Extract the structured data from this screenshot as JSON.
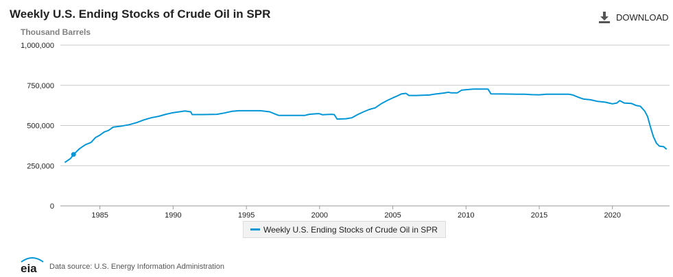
{
  "header": {
    "title": "Weekly U.S. Ending Stocks of Crude Oil in SPR",
    "subtitle": "Thousand Barrels",
    "download_label": "DOWNLOAD"
  },
  "footer": {
    "logo_text": "eia",
    "source": "Data source: U.S. Energy Information Administration"
  },
  "colors": {
    "series": "#0096d6",
    "grid": "#c8c8c8",
    "axis_text": "#222222"
  },
  "icons": {
    "download": "download-icon",
    "logo": "eia-logo-icon"
  },
  "chart_data": {
    "type": "line",
    "title": "Weekly U.S. Ending Stocks of Crude Oil in SPR",
    "ylabel": "Thousand Barrels",
    "xlabel": "",
    "xlim": [
      1982.3,
      2023.9
    ],
    "ylim": [
      0,
      1000000
    ],
    "grid": true,
    "legend_position": "bottom-center",
    "y_ticks": [
      {
        "value": 0,
        "label": "0"
      },
      {
        "value": 250000,
        "label": "250,000"
      },
      {
        "value": 500000,
        "label": "500,000"
      },
      {
        "value": 750000,
        "label": "750,000"
      },
      {
        "value": 1000000,
        "label": "1,000,000"
      }
    ],
    "x_ticks": [
      {
        "value": 1985,
        "label": "1985"
      },
      {
        "value": 1990,
        "label": "1990"
      },
      {
        "value": 1995,
        "label": "1995"
      },
      {
        "value": 2000,
        "label": "2000"
      },
      {
        "value": 2005,
        "label": "2005"
      },
      {
        "value": 2010,
        "label": "2010"
      },
      {
        "value": 2015,
        "label": "2015"
      },
      {
        "value": 2020,
        "label": "2020"
      }
    ],
    "series": [
      {
        "name": "Weekly U.S. Ending Stocks of Crude Oil in SPR",
        "color": "#0096d6",
        "marker": {
          "x": 1983.2,
          "y": 320000
        },
        "points": [
          [
            1982.6,
            270000
          ],
          [
            1983.0,
            295000
          ],
          [
            1983.2,
            320000
          ],
          [
            1983.6,
            355000
          ],
          [
            1984.0,
            380000
          ],
          [
            1984.4,
            395000
          ],
          [
            1984.7,
            425000
          ],
          [
            1985.0,
            440000
          ],
          [
            1985.3,
            460000
          ],
          [
            1985.6,
            470000
          ],
          [
            1985.9,
            490000
          ],
          [
            1986.5,
            497000
          ],
          [
            1987.0,
            505000
          ],
          [
            1987.5,
            518000
          ],
          [
            1988.0,
            535000
          ],
          [
            1988.5,
            548000
          ],
          [
            1989.0,
            557000
          ],
          [
            1989.5,
            570000
          ],
          [
            1990.0,
            580000
          ],
          [
            1990.5,
            586000
          ],
          [
            1990.8,
            590000
          ],
          [
            1991.2,
            585000
          ],
          [
            1991.3,
            568000
          ],
          [
            1992.0,
            568000
          ],
          [
            1993.0,
            570000
          ],
          [
            1993.5,
            578000
          ],
          [
            1994.0,
            588000
          ],
          [
            1994.5,
            592000
          ],
          [
            1996.0,
            592000
          ],
          [
            1996.6,
            585000
          ],
          [
            1997.0,
            570000
          ],
          [
            1997.2,
            563000
          ],
          [
            1998.0,
            563000
          ],
          [
            1998.5,
            563000
          ],
          [
            1999.0,
            563000
          ],
          [
            1999.3,
            570000
          ],
          [
            1999.8,
            573000
          ],
          [
            2000.0,
            573000
          ],
          [
            2000.2,
            567000
          ],
          [
            2000.8,
            570000
          ],
          [
            2001.0,
            568000
          ],
          [
            2001.2,
            540000
          ],
          [
            2001.8,
            542000
          ],
          [
            2002.2,
            548000
          ],
          [
            2002.6,
            568000
          ],
          [
            2003.0,
            585000
          ],
          [
            2003.4,
            600000
          ],
          [
            2003.8,
            610000
          ],
          [
            2004.2,
            635000
          ],
          [
            2004.6,
            655000
          ],
          [
            2005.0,
            672000
          ],
          [
            2005.3,
            684000
          ],
          [
            2005.6,
            697000
          ],
          [
            2005.9,
            700000
          ],
          [
            2006.1,
            687000
          ],
          [
            2006.6,
            687000
          ],
          [
            2007.5,
            690000
          ],
          [
            2008.0,
            697000
          ],
          [
            2008.5,
            702000
          ],
          [
            2008.8,
            707000
          ],
          [
            2009.0,
            703000
          ],
          [
            2009.4,
            703000
          ],
          [
            2009.7,
            720000
          ],
          [
            2010.5,
            727000
          ],
          [
            2011.3,
            727000
          ],
          [
            2011.5,
            727000
          ],
          [
            2011.7,
            697000
          ],
          [
            2012.5,
            696000
          ],
          [
            2013.5,
            695000
          ],
          [
            2014.0,
            695000
          ],
          [
            2014.5,
            692000
          ],
          [
            2015.0,
            691000
          ],
          [
            2015.5,
            695000
          ],
          [
            2016.0,
            695000
          ],
          [
            2016.5,
            695000
          ],
          [
            2017.0,
            695000
          ],
          [
            2017.3,
            690000
          ],
          [
            2017.7,
            675000
          ],
          [
            2018.0,
            665000
          ],
          [
            2018.5,
            660000
          ],
          [
            2019.0,
            650000
          ],
          [
            2019.5,
            645000
          ],
          [
            2020.0,
            635000
          ],
          [
            2020.3,
            640000
          ],
          [
            2020.5,
            655000
          ],
          [
            2020.8,
            640000
          ],
          [
            2021.3,
            637000
          ],
          [
            2021.6,
            625000
          ],
          [
            2021.9,
            620000
          ],
          [
            2022.2,
            590000
          ],
          [
            2022.4,
            555000
          ],
          [
            2022.6,
            490000
          ],
          [
            2022.8,
            430000
          ],
          [
            2023.0,
            390000
          ],
          [
            2023.2,
            372000
          ],
          [
            2023.5,
            368000
          ],
          [
            2023.7,
            352000
          ]
        ]
      }
    ]
  }
}
